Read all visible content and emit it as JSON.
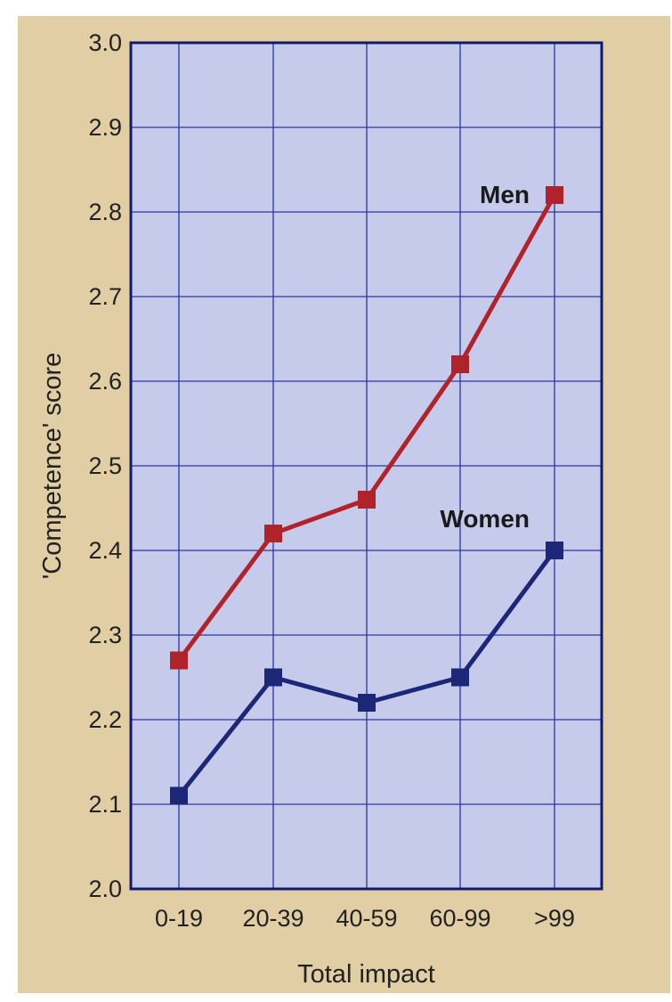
{
  "chart_data": {
    "type": "line",
    "title": "",
    "xlabel": "Total impact",
    "ylabel": "'Competence' score",
    "categories": [
      "0-19",
      "20-39",
      "40-59",
      "60-99",
      ">99"
    ],
    "ylim": [
      2.0,
      3.0
    ],
    "yticks": [
      "2.0",
      "2.1",
      "2.2",
      "2.3",
      "2.4",
      "2.5",
      "2.6",
      "2.7",
      "2.8",
      "2.9",
      "3.0"
    ],
    "grid": true,
    "series": [
      {
        "name": "Men",
        "values": [
          2.27,
          2.42,
          2.46,
          2.62,
          2.82
        ],
        "color": "#b0232a"
      },
      {
        "name": "Women",
        "values": [
          2.11,
          2.25,
          2.22,
          2.25,
          2.4
        ],
        "color": "#1c2777"
      }
    ],
    "colors": {
      "plot_background": "#c6caeb",
      "grid": "#2a37a0",
      "axis": "#101a6e",
      "page_background": "#e2cea4"
    }
  }
}
